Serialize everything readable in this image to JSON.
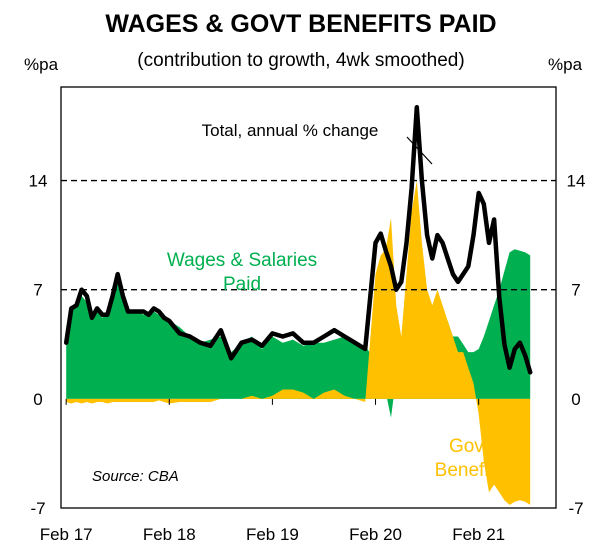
{
  "chart_data": {
    "type": "area",
    "title": "WAGES & GOVT BENEFITS PAID",
    "subtitle": "(contribution to growth, 4wk smoothed)",
    "ylabel_left": "%pa",
    "ylabel_right": "%pa",
    "ylim": [
      -7,
      20
    ],
    "y_ticks": [
      -7,
      0,
      7,
      14
    ],
    "x_ticks": [
      "Feb 17",
      "Feb 18",
      "Feb 19",
      "Feb 20",
      "Feb 21"
    ],
    "gridlines": [
      7,
      14
    ],
    "source": "Source: CBA",
    "annotations": {
      "wages": [
        "Wages & Salaries",
        "Paid"
      ],
      "govt": [
        "Govt",
        "Benefits"
      ],
      "total": "Total, annual % change"
    },
    "colors": {
      "wages": "#00b050",
      "govt": "#ffc000",
      "total": "#000000",
      "gridline": "#000000"
    },
    "x": [
      0.0,
      0.05,
      0.1,
      0.15,
      0.2,
      0.25,
      0.3,
      0.35,
      0.4,
      0.45,
      0.5,
      0.55,
      0.6,
      0.65,
      0.7,
      0.75,
      0.8,
      0.85,
      0.9,
      0.95,
      1.0,
      1.1,
      1.2,
      1.3,
      1.4,
      1.5,
      1.6,
      1.7,
      1.8,
      1.9,
      2.0,
      2.1,
      2.2,
      2.3,
      2.4,
      2.5,
      2.6,
      2.7,
      2.8,
      2.9,
      3.0,
      3.05,
      3.1,
      3.15,
      3.2,
      3.25,
      3.3,
      3.35,
      3.4,
      3.45,
      3.5,
      3.55,
      3.6,
      3.65,
      3.7,
      3.75,
      3.8,
      3.85,
      3.9,
      3.95,
      4.0,
      4.05,
      4.1,
      4.15,
      4.2,
      4.25,
      4.3,
      4.35,
      4.4,
      4.45,
      4.5
    ],
    "series": [
      {
        "name": "Wages & Salaries Paid",
        "values": [
          3.6,
          5.6,
          6.0,
          6.6,
          6.2,
          5.2,
          5.6,
          5.2,
          5.6,
          6.6,
          7.8,
          6.6,
          5.8,
          5.6,
          5.6,
          5.4,
          5.6,
          5.6,
          5.4,
          5.2,
          5.0,
          4.6,
          4.0,
          3.6,
          3.8,
          4.0,
          3.0,
          3.6,
          4.0,
          3.2,
          4.0,
          3.6,
          3.8,
          3.4,
          3.6,
          3.6,
          3.8,
          4.0,
          3.6,
          3.4,
          2.4,
          1.6,
          0.4,
          -1.2,
          1.4,
          0.6,
          0.8,
          1.2,
          2.0,
          2.6,
          1.6,
          1.6,
          2.8,
          4.0,
          5.0,
          4.0,
          4.0,
          3.5,
          3.0,
          3.0,
          3.2,
          4.0,
          5.0,
          6.0,
          7.0,
          8.2,
          9.4,
          9.6,
          9.5,
          9.4,
          9.2
        ]
      },
      {
        "name": "Govt Benefits",
        "values": [
          -0.2,
          -0.3,
          -0.2,
          -0.3,
          -0.2,
          -0.3,
          -0.2,
          -0.2,
          -0.3,
          -0.2,
          -0.2,
          -0.2,
          -0.2,
          -0.2,
          -0.2,
          -0.2,
          -0.2,
          -0.2,
          -0.1,
          -0.2,
          -0.3,
          -0.2,
          -0.2,
          -0.2,
          -0.2,
          0.0,
          0.0,
          0.0,
          0.2,
          0.0,
          0.2,
          0.6,
          0.6,
          0.4,
          0.0,
          0.4,
          0.6,
          0.2,
          0.0,
          -0.2,
          8.0,
          9.2,
          9.6,
          11.6,
          6.0,
          4.0,
          8.0,
          12.0,
          14.0,
          10.0,
          7.0,
          6.0,
          7.0,
          6.0,
          5.0,
          4.0,
          3.0,
          3.0,
          2.0,
          1.0,
          -1.0,
          -4.0,
          -6.0,
          -5.5,
          -6.0,
          -6.5,
          -6.8,
          -6.6,
          -6.5,
          -6.6,
          -6.8
        ]
      },
      {
        "name": "Total, annual % change",
        "values": [
          3.6,
          5.8,
          6.0,
          7.0,
          6.6,
          5.2,
          5.8,
          5.4,
          5.4,
          6.6,
          8.0,
          6.6,
          5.6,
          5.6,
          5.6,
          5.6,
          5.4,
          5.8,
          5.6,
          5.2,
          5.0,
          4.2,
          4.0,
          3.6,
          3.4,
          4.4,
          2.6,
          3.6,
          3.8,
          3.4,
          4.2,
          4.0,
          4.2,
          3.6,
          3.6,
          4.0,
          4.4,
          4.0,
          3.6,
          3.2,
          10.0,
          10.6,
          9.5,
          8.5,
          7.0,
          7.5,
          10.0,
          13.5,
          18.7,
          14.0,
          10.5,
          9.0,
          10.5,
          10.0,
          9.0,
          8.0,
          7.5,
          8.0,
          8.5,
          10.5,
          13.2,
          12.5,
          10.0,
          11.5,
          6.5,
          3.5,
          2.0,
          3.2,
          3.6,
          2.8,
          1.7
        ]
      }
    ]
  }
}
